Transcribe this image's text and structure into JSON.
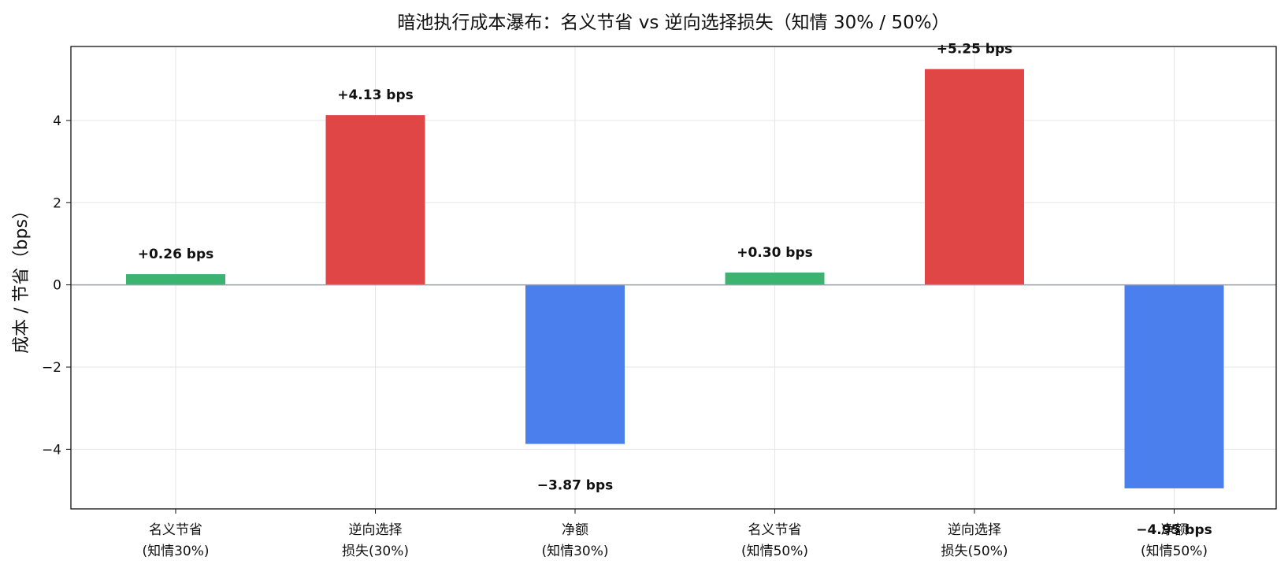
{
  "chart_data": {
    "type": "bar",
    "title": "暗池执行成本瀑布：名义节省 vs 逆向选择损失（知情 30% / 50%）",
    "xlabel": "",
    "ylabel": "成本 / 节省（bps）",
    "ylim": [
      -5.45,
      5.8
    ],
    "yticks": [
      -4,
      -2,
      0,
      2,
      4
    ],
    "ytick_labels": [
      "−4",
      "−2",
      "0",
      "2",
      "4"
    ],
    "grid": true,
    "categories": [
      [
        "名义节省",
        "(知情30%)"
      ],
      [
        "逆向选择",
        "损失(30%)"
      ],
      [
        "净额",
        "(知情30%)"
      ],
      [
        "名义节省",
        "(知情50%)"
      ],
      [
        "逆向选择",
        "损失(50%)"
      ],
      [
        "净额",
        "(知情50%)"
      ]
    ],
    "values": [
      0.26,
      4.13,
      -3.87,
      0.3,
      5.25,
      -4.95
    ],
    "value_labels": [
      "+0.26 bps",
      "+4.13 bps",
      "−3.87 bps",
      "+0.30 bps",
      "+5.25 bps",
      "−4.95 bps"
    ],
    "bar_colors": [
      "#3cb371",
      "#e04646",
      "#4a7fed",
      "#3cb371",
      "#e04646",
      "#4a7fed"
    ]
  }
}
